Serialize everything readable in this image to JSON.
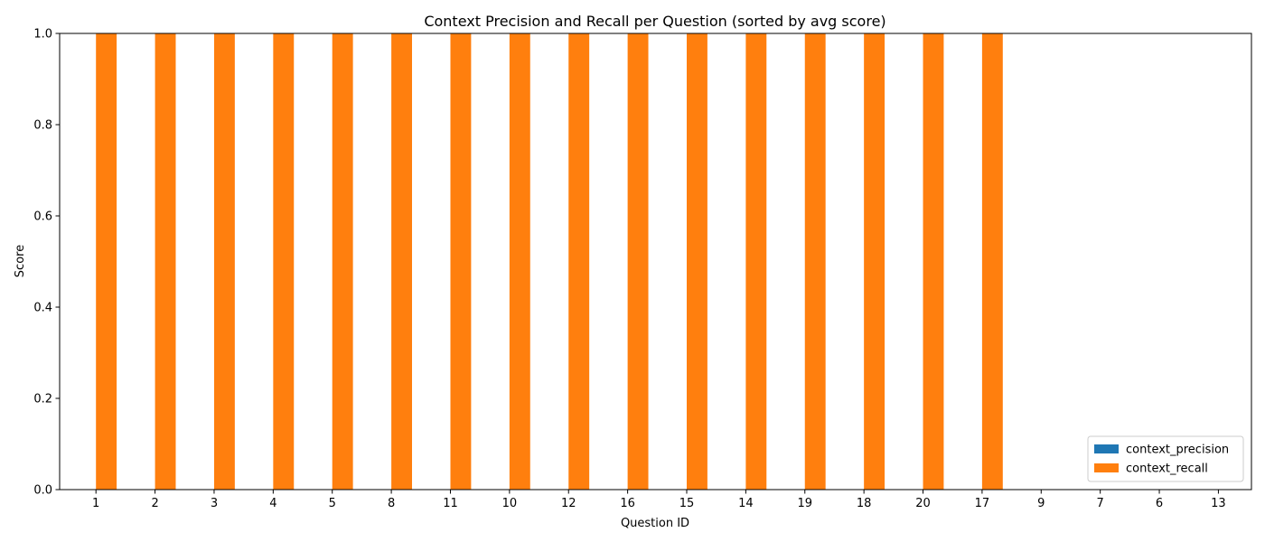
{
  "chart_data": {
    "type": "bar",
    "title": "Context Precision and Recall per Question (sorted by avg score)",
    "xlabel": "Question ID",
    "ylabel": "Score",
    "ylim": [
      0,
      1.0
    ],
    "yticks": [
      "0.0",
      "0.2",
      "0.4",
      "0.6",
      "0.8",
      "1.0"
    ],
    "categories": [
      "1",
      "2",
      "3",
      "4",
      "5",
      "8",
      "11",
      "10",
      "12",
      "16",
      "15",
      "14",
      "19",
      "18",
      "20",
      "17",
      "9",
      "7",
      "6",
      "13"
    ],
    "series": [
      {
        "name": "context_precision",
        "color": "#1f77b4",
        "values": [
          0,
          0,
          0,
          0,
          0,
          0,
          0,
          0,
          0,
          0,
          0,
          0,
          0,
          0,
          0,
          0,
          0,
          0,
          0,
          0
        ]
      },
      {
        "name": "context_recall",
        "color": "#ff7f0e",
        "values": [
          1,
          1,
          1,
          1,
          1,
          1,
          1,
          1,
          1,
          1,
          1,
          1,
          1,
          1,
          1,
          1,
          0,
          0,
          0,
          0
        ]
      }
    ],
    "legend_position": "lower-right",
    "grid": false
  }
}
